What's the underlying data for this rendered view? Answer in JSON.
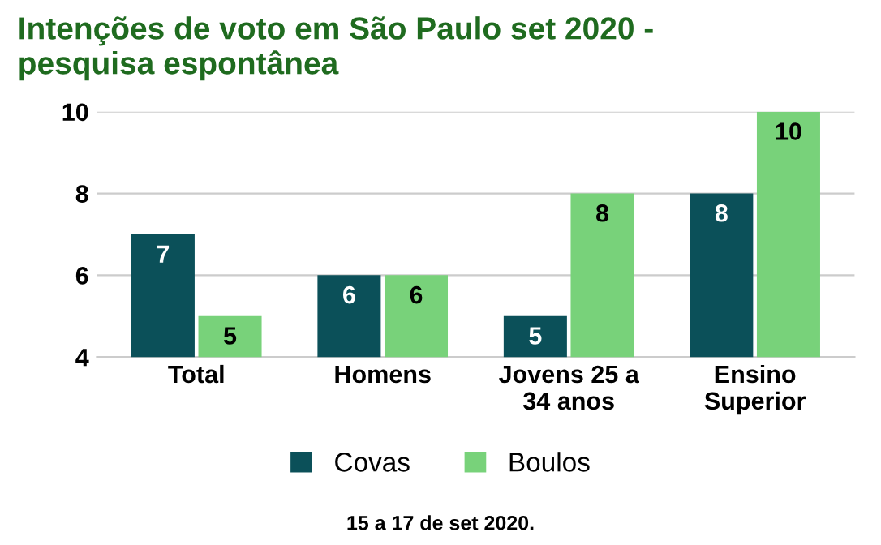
{
  "chart_data": {
    "type": "bar",
    "title": "Intenções de voto em São Paulo set 2020 -\npesquisa espontânea",
    "categories": [
      "Total",
      "Homens",
      "Jovens 25 a\n34 anos",
      "Ensino\nSuperior"
    ],
    "series": [
      {
        "name": "Covas",
        "color": "#0b5059",
        "values": [
          7,
          6,
          5,
          8
        ]
      },
      {
        "name": "Boulos",
        "color": "#78d27a",
        "values": [
          5,
          6,
          8,
          10
        ]
      }
    ],
    "ylim": [
      4,
      10
    ],
    "yticks": [
      4,
      6,
      8,
      10
    ],
    "grid": "y",
    "legend": "bottom",
    "data_labels": true,
    "annotations": [
      "15 a 17 de set 2020."
    ]
  }
}
